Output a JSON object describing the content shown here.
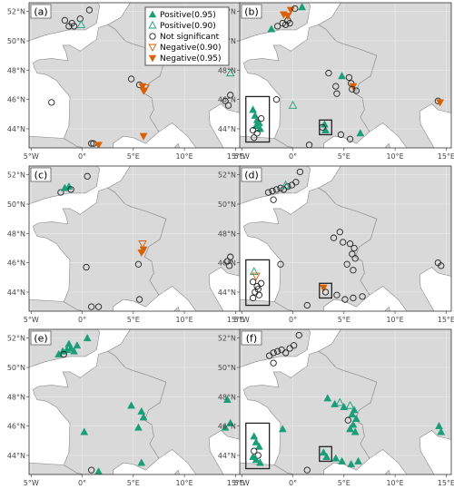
{
  "colors": {
    "positive": "#1a9e77",
    "negative": "#d95f02",
    "not_significant": "#222222",
    "land": "#d9d9d9",
    "sea": "#ffffff",
    "border": "#888888"
  },
  "axes": {
    "x_ticks": [
      {
        "lon": -5,
        "label": "5°W"
      },
      {
        "lon": 0,
        "label": "0°"
      },
      {
        "lon": 5,
        "label": "5°E"
      },
      {
        "lon": 10,
        "label": "10°E"
      },
      {
        "lon": 15,
        "label": "15°E"
      }
    ],
    "y_ticks": [
      {
        "lat": 44,
        "label": "44°N"
      },
      {
        "lat": 46,
        "label": "46°N"
      },
      {
        "lat": 48,
        "label": "48°N"
      },
      {
        "lat": 50,
        "label": "50°N"
      },
      {
        "lat": 52,
        "label": "52°N"
      }
    ],
    "lon_range": [
      -5.2,
      15.5
    ],
    "lat_range": [
      42.7,
      52.6
    ]
  },
  "legend": {
    "entries": [
      {
        "key": "pos95",
        "label": "Positive(0.95)"
      },
      {
        "key": "pos90",
        "label": "Positive(0.90)"
      },
      {
        "key": "ns",
        "label": "Not significant"
      },
      {
        "key": "neg90",
        "label": "Negative(0.90)"
      },
      {
        "key": "neg95",
        "label": "Negative(0.95)"
      }
    ]
  },
  "panels": [
    {
      "label": "(a)",
      "boxes": [],
      "points": [
        {
          "lon": -1.7,
          "lat": 51.4,
          "t": "ns"
        },
        {
          "lon": -1.3,
          "lat": 51.0,
          "t": "ns"
        },
        {
          "lon": -1.0,
          "lat": 51.2,
          "t": "ns"
        },
        {
          "lon": -0.8,
          "lat": 51.0,
          "t": "ns"
        },
        {
          "lon": -0.2,
          "lat": 51.5,
          "t": "ns"
        },
        {
          "lon": 0.7,
          "lat": 52.1,
          "t": "ns"
        },
        {
          "lon": -0.1,
          "lat": 51.1,
          "t": "pos90"
        },
        {
          "lon": 4.8,
          "lat": 47.4,
          "t": "ns"
        },
        {
          "lon": 5.6,
          "lat": 47.0,
          "t": "ns"
        },
        {
          "lon": 5.9,
          "lat": 46.9,
          "t": "neg95"
        },
        {
          "lon": 6.0,
          "lat": 46.6,
          "t": "neg95"
        },
        {
          "lon": 6.2,
          "lat": 46.8,
          "t": "neg90"
        },
        {
          "lon": -3.0,
          "lat": 45.8,
          "t": "ns"
        },
        {
          "lon": 0.9,
          "lat": 43.0,
          "t": "ns"
        },
        {
          "lon": 1.1,
          "lat": 43.0,
          "t": "ns"
        },
        {
          "lon": 1.6,
          "lat": 42.9,
          "t": "neg95"
        },
        {
          "lon": 6.0,
          "lat": 43.5,
          "t": "neg95"
        },
        {
          "lon": 14.0,
          "lat": 45.9,
          "t": "ns"
        },
        {
          "lon": 14.5,
          "lat": 46.3,
          "t": "ns"
        },
        {
          "lon": 14.3,
          "lat": 45.6,
          "t": "ns"
        },
        {
          "lon": 14.5,
          "lat": 47.8,
          "t": "pos90"
        }
      ]
    },
    {
      "label": "(b)",
      "boxes": [
        {
          "lon1": -4.6,
          "lat1": 43.1,
          "lon2": -2.3,
          "lat2": 46.2
        },
        {
          "lon1": 2.6,
          "lat1": 43.6,
          "lon2": 3.8,
          "lat2": 44.6
        }
      ],
      "points": [
        {
          "lon": -2.1,
          "lat": 50.8,
          "t": "pos95"
        },
        {
          "lon": -1.5,
          "lat": 51.0,
          "t": "ns"
        },
        {
          "lon": -1.0,
          "lat": 51.2,
          "t": "ns"
        },
        {
          "lon": -0.7,
          "lat": 51.1,
          "t": "ns"
        },
        {
          "lon": -0.3,
          "lat": 51.2,
          "t": "ns"
        },
        {
          "lon": -0.5,
          "lat": 51.4,
          "t": "ns"
        },
        {
          "lon": -0.9,
          "lat": 51.8,
          "t": "neg95"
        },
        {
          "lon": -0.5,
          "lat": 51.7,
          "t": "neg95"
        },
        {
          "lon": -0.2,
          "lat": 52.1,
          "t": "neg95"
        },
        {
          "lon": 0.2,
          "lat": 52.2,
          "t": "ns"
        },
        {
          "lon": 0.9,
          "lat": 52.3,
          "t": "pos95"
        },
        {
          "lon": 3.5,
          "lat": 47.8,
          "t": "ns"
        },
        {
          "lon": 4.2,
          "lat": 46.9,
          "t": "ns"
        },
        {
          "lon": 4.3,
          "lat": 46.4,
          "t": "ns"
        },
        {
          "lon": 4.8,
          "lat": 47.6,
          "t": "pos95"
        },
        {
          "lon": 5.5,
          "lat": 47.5,
          "t": "ns"
        },
        {
          "lon": 5.7,
          "lat": 47.1,
          "t": "ns"
        },
        {
          "lon": 5.9,
          "lat": 46.9,
          "t": "neg95"
        },
        {
          "lon": 5.8,
          "lat": 46.7,
          "t": "ns"
        },
        {
          "lon": 6.2,
          "lat": 46.6,
          "t": "ns"
        },
        {
          "lon": 0.0,
          "lat": 45.6,
          "t": "pos90"
        },
        {
          "lon": -1.6,
          "lat": 46.0,
          "t": "ns"
        },
        {
          "lon": -3.9,
          "lat": 45.3,
          "t": "pos95"
        },
        {
          "lon": -3.7,
          "lat": 44.9,
          "t": "pos95"
        },
        {
          "lon": -3.5,
          "lat": 44.6,
          "t": "pos95"
        },
        {
          "lon": -3.3,
          "lat": 44.4,
          "t": "pos95"
        },
        {
          "lon": -3.6,
          "lat": 44.2,
          "t": "pos95"
        },
        {
          "lon": -3.2,
          "lat": 44.0,
          "t": "pos95"
        },
        {
          "lon": -3.9,
          "lat": 43.9,
          "t": "ns"
        },
        {
          "lon": -3.5,
          "lat": 43.7,
          "t": "ns"
        },
        {
          "lon": -3.8,
          "lat": 43.4,
          "t": "ns"
        },
        {
          "lon": -3.1,
          "lat": 44.7,
          "t": "ns"
        },
        {
          "lon": 3.1,
          "lat": 44.3,
          "t": "pos95"
        },
        {
          "lon": 3.2,
          "lat": 43.9,
          "t": "pos95"
        },
        {
          "lon": 2.9,
          "lat": 44.1,
          "t": "ns"
        },
        {
          "lon": 1.6,
          "lat": 42.9,
          "t": "ns"
        },
        {
          "lon": 4.7,
          "lat": 43.6,
          "t": "ns"
        },
        {
          "lon": 5.6,
          "lat": 43.3,
          "t": "ns"
        },
        {
          "lon": 6.6,
          "lat": 43.7,
          "t": "pos95"
        },
        {
          "lon": 14.2,
          "lat": 45.9,
          "t": "ns"
        },
        {
          "lon": 14.4,
          "lat": 45.8,
          "t": "neg95"
        }
      ]
    },
    {
      "label": "(c)",
      "boxes": [],
      "points": [
        {
          "lon": -2.1,
          "lat": 50.8,
          "t": "ns"
        },
        {
          "lon": -1.7,
          "lat": 51.1,
          "t": "pos95"
        },
        {
          "lon": -1.3,
          "lat": 51.2,
          "t": "pos95"
        },
        {
          "lon": -1.1,
          "lat": 51.0,
          "t": "ns"
        },
        {
          "lon": 0.5,
          "lat": 51.9,
          "t": "ns"
        },
        {
          "lon": 5.9,
          "lat": 47.3,
          "t": "neg90"
        },
        {
          "lon": 6.0,
          "lat": 46.9,
          "t": "neg95"
        },
        {
          "lon": 5.8,
          "lat": 46.7,
          "t": "neg95"
        },
        {
          "lon": 5.5,
          "lat": 45.9,
          "t": "ns"
        },
        {
          "lon": 0.4,
          "lat": 45.7,
          "t": "ns"
        },
        {
          "lon": 0.9,
          "lat": 43.0,
          "t": "ns"
        },
        {
          "lon": 1.6,
          "lat": 43.0,
          "t": "ns"
        },
        {
          "lon": 5.6,
          "lat": 43.5,
          "t": "ns"
        },
        {
          "lon": 14.2,
          "lat": 46.1,
          "t": "ns"
        },
        {
          "lon": 14.4,
          "lat": 45.8,
          "t": "ns"
        },
        {
          "lon": 14.5,
          "lat": 46.4,
          "t": "ns"
        }
      ]
    },
    {
      "label": "(d)",
      "boxes": [
        {
          "lon1": -4.6,
          "lat1": 43.1,
          "lon2": -2.3,
          "lat2": 46.2
        },
        {
          "lon1": 2.6,
          "lat1": 43.6,
          "lon2": 3.8,
          "lat2": 44.6
        }
      ],
      "points": [
        {
          "lon": -2.4,
          "lat": 50.8,
          "t": "ns"
        },
        {
          "lon": -2.0,
          "lat": 50.9,
          "t": "ns"
        },
        {
          "lon": -1.6,
          "lat": 51.0,
          "t": "ns"
        },
        {
          "lon": -1.2,
          "lat": 51.1,
          "t": "ns"
        },
        {
          "lon": -0.9,
          "lat": 51.0,
          "t": "ns"
        },
        {
          "lon": -0.5,
          "lat": 51.2,
          "t": "ns"
        },
        {
          "lon": -0.1,
          "lat": 51.3,
          "t": "ns"
        },
        {
          "lon": 0.3,
          "lat": 51.5,
          "t": "ns"
        },
        {
          "lon": 0.7,
          "lat": 52.2,
          "t": "ns"
        },
        {
          "lon": -0.7,
          "lat": 51.3,
          "t": "pos90"
        },
        {
          "lon": -1.9,
          "lat": 50.3,
          "t": "ns"
        },
        {
          "lon": 4.6,
          "lat": 48.1,
          "t": "ns"
        },
        {
          "lon": 4.0,
          "lat": 47.7,
          "t": "ns"
        },
        {
          "lon": 4.9,
          "lat": 47.4,
          "t": "ns"
        },
        {
          "lon": 5.6,
          "lat": 47.3,
          "t": "ns"
        },
        {
          "lon": 6.0,
          "lat": 47.0,
          "t": "ns"
        },
        {
          "lon": 5.8,
          "lat": 46.6,
          "t": "ns"
        },
        {
          "lon": 6.1,
          "lat": 46.3,
          "t": "ns"
        },
        {
          "lon": 5.3,
          "lat": 45.9,
          "t": "ns"
        },
        {
          "lon": 5.9,
          "lat": 45.5,
          "t": "ns"
        },
        {
          "lon": -1.2,
          "lat": 45.9,
          "t": "ns"
        },
        {
          "lon": -3.8,
          "lat": 45.4,
          "t": "pos90"
        },
        {
          "lon": -3.6,
          "lat": 45.1,
          "t": "neg90"
        },
        {
          "lon": -3.9,
          "lat": 44.7,
          "t": "ns"
        },
        {
          "lon": -3.5,
          "lat": 44.4,
          "t": "ns"
        },
        {
          "lon": -3.7,
          "lat": 44.0,
          "t": "ns"
        },
        {
          "lon": -3.3,
          "lat": 43.8,
          "t": "ns"
        },
        {
          "lon": -3.9,
          "lat": 43.6,
          "t": "ns"
        },
        {
          "lon": -3.4,
          "lat": 44.2,
          "t": "ns"
        },
        {
          "lon": -3.1,
          "lat": 44.6,
          "t": "ns"
        },
        {
          "lon": 3.0,
          "lat": 44.3,
          "t": "neg95"
        },
        {
          "lon": 3.2,
          "lat": 44.0,
          "t": "ns"
        },
        {
          "lon": 1.4,
          "lat": 43.1,
          "t": "ns"
        },
        {
          "lon": 4.3,
          "lat": 43.8,
          "t": "ns"
        },
        {
          "lon": 5.1,
          "lat": 43.5,
          "t": "ns"
        },
        {
          "lon": 5.9,
          "lat": 43.6,
          "t": "ns"
        },
        {
          "lon": 6.8,
          "lat": 43.7,
          "t": "ns"
        },
        {
          "lon": 14.2,
          "lat": 46.0,
          "t": "ns"
        },
        {
          "lon": 14.5,
          "lat": 45.8,
          "t": "ns"
        }
      ]
    },
    {
      "label": "(e)",
      "boxes": [],
      "points": [
        {
          "lon": -2.3,
          "lat": 50.9,
          "t": "pos95"
        },
        {
          "lon": -1.9,
          "lat": 51.1,
          "t": "pos95"
        },
        {
          "lon": -1.5,
          "lat": 51.2,
          "t": "pos95"
        },
        {
          "lon": -1.1,
          "lat": 51.3,
          "t": "pos95"
        },
        {
          "lon": -0.8,
          "lat": 51.1,
          "t": "pos95"
        },
        {
          "lon": -0.5,
          "lat": 51.5,
          "t": "pos95"
        },
        {
          "lon": -1.3,
          "lat": 51.6,
          "t": "pos95"
        },
        {
          "lon": 0.5,
          "lat": 52.0,
          "t": "pos95"
        },
        {
          "lon": -1.8,
          "lat": 50.9,
          "t": "ns"
        },
        {
          "lon": 4.8,
          "lat": 47.4,
          "t": "pos95"
        },
        {
          "lon": 5.8,
          "lat": 47.0,
          "t": "pos95"
        },
        {
          "lon": 6.0,
          "lat": 46.6,
          "t": "pos95"
        },
        {
          "lon": 5.5,
          "lat": 45.9,
          "t": "pos95"
        },
        {
          "lon": 0.2,
          "lat": 45.6,
          "t": "pos95"
        },
        {
          "lon": 0.9,
          "lat": 43.0,
          "t": "ns"
        },
        {
          "lon": 1.6,
          "lat": 42.9,
          "t": "pos95"
        },
        {
          "lon": 5.8,
          "lat": 43.5,
          "t": "pos95"
        },
        {
          "lon": 14.0,
          "lat": 45.9,
          "t": "pos95"
        },
        {
          "lon": 14.5,
          "lat": 46.2,
          "t": "pos95"
        },
        {
          "lon": 14.2,
          "lat": 47.8,
          "t": "pos95"
        }
      ]
    },
    {
      "label": "(f)",
      "boxes": [
        {
          "lon1": -4.6,
          "lat1": 43.1,
          "lon2": -2.3,
          "lat2": 46.2
        },
        {
          "lon1": 2.6,
          "lat1": 43.6,
          "lon2": 3.8,
          "lat2": 44.6
        }
      ],
      "points": [
        {
          "lon": -2.3,
          "lat": 50.8,
          "t": "ns"
        },
        {
          "lon": -1.9,
          "lat": 51.0,
          "t": "ns"
        },
        {
          "lon": -1.5,
          "lat": 51.1,
          "t": "ns"
        },
        {
          "lon": -1.1,
          "lat": 51.2,
          "t": "ns"
        },
        {
          "lon": -0.7,
          "lat": 51.0,
          "t": "ns"
        },
        {
          "lon": -0.3,
          "lat": 51.3,
          "t": "ns"
        },
        {
          "lon": 0.1,
          "lat": 51.5,
          "t": "ns"
        },
        {
          "lon": 0.6,
          "lat": 52.2,
          "t": "ns"
        },
        {
          "lon": -1.9,
          "lat": 50.3,
          "t": "ns"
        },
        {
          "lon": 3.4,
          "lat": 47.9,
          "t": "pos95"
        },
        {
          "lon": 4.6,
          "lat": 47.6,
          "t": "pos90"
        },
        {
          "lon": 4.1,
          "lat": 47.5,
          "t": "pos95"
        },
        {
          "lon": 5.0,
          "lat": 47.3,
          "t": "pos95"
        },
        {
          "lon": 5.6,
          "lat": 47.4,
          "t": "pos90"
        },
        {
          "lon": 6.0,
          "lat": 47.1,
          "t": "pos95"
        },
        {
          "lon": 5.8,
          "lat": 46.8,
          "t": "pos95"
        },
        {
          "lon": 6.2,
          "lat": 46.5,
          "t": "pos95"
        },
        {
          "lon": 5.4,
          "lat": 46.4,
          "t": "ns"
        },
        {
          "lon": 5.9,
          "lat": 46.1,
          "t": "pos95"
        },
        {
          "lon": 5.6,
          "lat": 45.8,
          "t": "pos95"
        },
        {
          "lon": 6.1,
          "lat": 45.6,
          "t": "pos95"
        },
        {
          "lon": -1.0,
          "lat": 45.8,
          "t": "pos95"
        },
        {
          "lon": -3.8,
          "lat": 45.3,
          "t": "pos95"
        },
        {
          "lon": -3.6,
          "lat": 44.9,
          "t": "pos95"
        },
        {
          "lon": -3.3,
          "lat": 44.6,
          "t": "pos95"
        },
        {
          "lon": -3.8,
          "lat": 44.3,
          "t": "ns"
        },
        {
          "lon": -3.4,
          "lat": 44.0,
          "t": "ns"
        },
        {
          "lon": -3.6,
          "lat": 43.7,
          "t": "pos95"
        },
        {
          "lon": -3.2,
          "lat": 43.5,
          "t": "pos95"
        },
        {
          "lon": -3.9,
          "lat": 43.9,
          "t": "pos95"
        },
        {
          "lon": 3.0,
          "lat": 44.2,
          "t": "pos95"
        },
        {
          "lon": 3.3,
          "lat": 43.9,
          "t": "pos95"
        },
        {
          "lon": 1.4,
          "lat": 43.0,
          "t": "ns"
        },
        {
          "lon": 4.2,
          "lat": 43.8,
          "t": "pos95"
        },
        {
          "lon": 4.8,
          "lat": 43.6,
          "t": "pos95"
        },
        {
          "lon": 5.7,
          "lat": 43.4,
          "t": "pos95"
        },
        {
          "lon": 6.4,
          "lat": 43.6,
          "t": "pos95"
        },
        {
          "lon": 14.3,
          "lat": 46.0,
          "t": "pos95"
        },
        {
          "lon": 14.5,
          "lat": 45.6,
          "t": "pos95"
        }
      ]
    }
  ]
}
